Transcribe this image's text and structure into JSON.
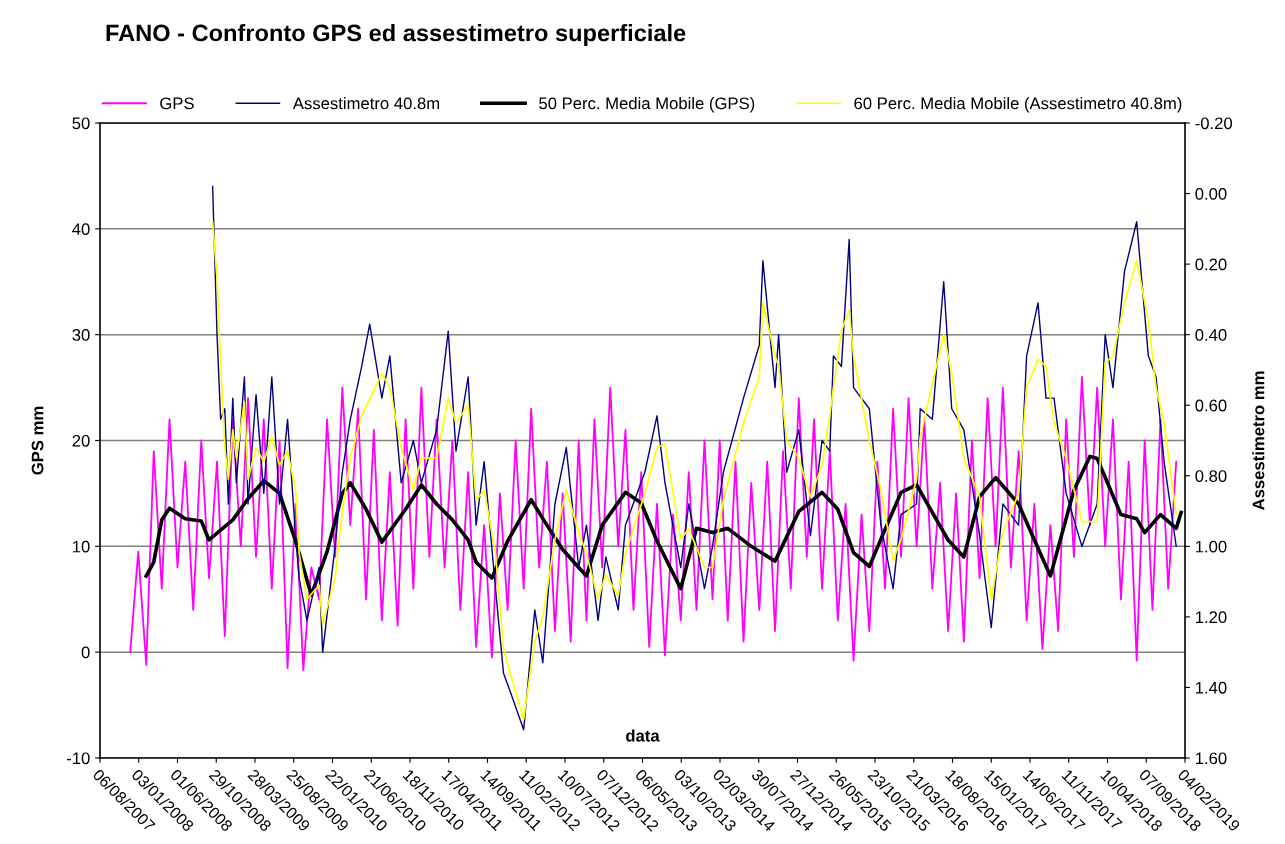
{
  "chart_data": {
    "type": "line",
    "title": "FANO - Confronto GPS ed assestimetro superficiale",
    "xlabel": "data",
    "ylabel": "GPS mm",
    "y2label": "Assestimetro mm",
    "xlim": [
      "2007-08-06",
      "2019-02-04"
    ],
    "xticks": [
      {
        "value": "2007-08-06",
        "label": "06/08/2007"
      },
      {
        "value": "2008-01-03",
        "label": "03/01/2008"
      },
      {
        "value": "2008-06-01",
        "label": "01/06/2008"
      },
      {
        "value": "2008-10-29",
        "label": "29/10/2008"
      },
      {
        "value": "2009-03-28",
        "label": "28/03/2009"
      },
      {
        "value": "2009-08-25",
        "label": "25/08/2009"
      },
      {
        "value": "2010-01-22",
        "label": "22/01/2010"
      },
      {
        "value": "2010-06-21",
        "label": "21/06/2010"
      },
      {
        "value": "2010-11-18",
        "label": "18/11/2010"
      },
      {
        "value": "2011-04-17",
        "label": "17/04/2011"
      },
      {
        "value": "2011-09-14",
        "label": "14/09/2011"
      },
      {
        "value": "2012-02-11",
        "label": "11/02/2012"
      },
      {
        "value": "2012-07-10",
        "label": "10/07/2012"
      },
      {
        "value": "2012-12-07",
        "label": "07/12/2012"
      },
      {
        "value": "2013-05-06",
        "label": "06/05/2013"
      },
      {
        "value": "2013-10-03",
        "label": "03/10/2013"
      },
      {
        "value": "2014-03-02",
        "label": "02/03/2014"
      },
      {
        "value": "2014-07-30",
        "label": "30/07/2014"
      },
      {
        "value": "2014-12-27",
        "label": "27/12/2014"
      },
      {
        "value": "2015-05-26",
        "label": "26/05/2015"
      },
      {
        "value": "2015-10-23",
        "label": "23/10/2015"
      },
      {
        "value": "2016-03-21",
        "label": "21/03/2016"
      },
      {
        "value": "2016-08-18",
        "label": "18/08/2016"
      },
      {
        "value": "2017-01-15",
        "label": "15/01/2017"
      },
      {
        "value": "2017-06-14",
        "label": "14/06/2017"
      },
      {
        "value": "2017-11-11",
        "label": "11/11/2017"
      },
      {
        "value": "2018-04-10",
        "label": "10/04/2018"
      },
      {
        "value": "2018-09-07",
        "label": "07/09/2018"
      },
      {
        "value": "2019-02-04",
        "label": "04/02/2019"
      }
    ],
    "ylim": [
      -10,
      50
    ],
    "yticks": [
      -10,
      0,
      10,
      20,
      30,
      40,
      50
    ],
    "y2lim": [
      1.6,
      -0.2
    ],
    "y2ticks": [
      {
        "value": -0.2,
        "label": "-0.20"
      },
      {
        "value": 0,
        "label": "0.00"
      },
      {
        "value": 0.2,
        "label": "0.20"
      },
      {
        "value": 0.4,
        "label": "0.40"
      },
      {
        "value": 0.6,
        "label": "0.60"
      },
      {
        "value": 0.8,
        "label": "0.80"
      },
      {
        "value": 1.0,
        "label": "1.00"
      },
      {
        "value": 1.2,
        "label": "1.20"
      },
      {
        "value": 1.4,
        "label": "1.40"
      },
      {
        "value": 1.6,
        "label": "1.60"
      }
    ],
    "grid": "y",
    "legend": "top",
    "series": [
      {
        "name": "GPS",
        "color": "#ff00ff",
        "x": [
          "2007-12",
          "2008-01",
          "2008-02",
          "2008-03",
          "2008-04",
          "2008-05",
          "2008-06",
          "2008-07",
          "2008-08",
          "2008-09",
          "2008-10",
          "2008-11",
          "2008-12",
          "2009-01",
          "2009-02",
          "2009-03",
          "2009-04",
          "2009-05",
          "2009-06",
          "2009-07",
          "2009-08",
          "2009-09",
          "2009-10",
          "2009-11",
          "2009-12",
          "2010-01",
          "2010-02",
          "2010-03",
          "2010-04",
          "2010-05",
          "2010-06",
          "2010-07",
          "2010-08",
          "2010-09",
          "2010-10",
          "2010-11",
          "2010-12",
          "2011-01",
          "2011-02",
          "2011-03",
          "2011-04",
          "2011-05",
          "2011-06",
          "2011-07",
          "2011-08",
          "2011-09",
          "2011-10",
          "2011-11",
          "2011-12",
          "2012-01",
          "2012-02",
          "2012-03",
          "2012-04",
          "2012-05",
          "2012-06",
          "2012-07",
          "2012-08",
          "2012-09",
          "2012-10",
          "2012-11",
          "2012-12",
          "2013-01",
          "2013-02",
          "2013-03",
          "2013-04",
          "2013-05",
          "2013-06",
          "2013-07",
          "2013-08",
          "2013-09",
          "2013-10",
          "2013-11",
          "2013-12",
          "2014-01",
          "2014-02",
          "2014-03",
          "2014-04",
          "2014-05",
          "2014-06",
          "2014-07",
          "2014-08",
          "2014-09",
          "2014-10",
          "2014-11",
          "2014-12",
          "2015-01",
          "2015-02",
          "2015-03",
          "2015-04",
          "2015-05",
          "2015-06",
          "2015-07",
          "2015-08",
          "2015-09",
          "2015-10",
          "2015-11",
          "2015-12",
          "2016-01",
          "2016-02",
          "2016-03",
          "2016-04",
          "2016-05",
          "2016-06",
          "2016-07",
          "2016-08",
          "2016-09",
          "2016-10",
          "2016-11",
          "2016-12",
          "2017-01",
          "2017-02",
          "2017-03",
          "2017-04",
          "2017-05",
          "2017-06",
          "2017-07",
          "2017-08",
          "2017-09",
          "2017-10",
          "2017-11",
          "2017-12",
          "2018-01",
          "2018-02",
          "2018-03",
          "2018-04",
          "2018-05",
          "2018-06",
          "2018-07",
          "2018-08",
          "2018-09",
          "2018-10",
          "2018-11",
          "2018-12",
          "2019-01"
        ],
        "values": [
          0,
          9.5,
          -1.2,
          19,
          6,
          22,
          8,
          18,
          4,
          20,
          7,
          18,
          1.5,
          22,
          10,
          24,
          9,
          22,
          6,
          20,
          -1.5,
          14,
          -1.7,
          8,
          5,
          22,
          9,
          25,
          12,
          23,
          5,
          21,
          3,
          17,
          2.5,
          22,
          6,
          25,
          9,
          22,
          8,
          20,
          4,
          17,
          0.5,
          12,
          -0.5,
          15,
          4,
          20,
          6,
          23,
          8,
          18,
          2,
          15,
          1,
          20,
          3,
          22,
          8,
          25,
          10,
          21,
          4,
          17,
          0.5,
          14,
          -0.3,
          13,
          3,
          17,
          4,
          20,
          5,
          20,
          3,
          18,
          1,
          16,
          4,
          18,
          2,
          19,
          6,
          24,
          9,
          22,
          6,
          19,
          3,
          14,
          -0.8,
          13,
          2,
          18,
          6,
          23,
          9,
          24,
          10,
          22,
          6,
          16,
          2,
          15,
          1,
          20,
          7,
          24,
          10,
          25,
          8,
          19,
          3,
          14,
          0.3,
          12,
          2,
          22,
          9,
          26,
          12,
          25,
          10,
          22,
          5,
          18,
          -0.8,
          20,
          4,
          22,
          6,
          18
        ]
      },
      {
        "name": "Assestimetro 40.8m",
        "color": "#000080",
        "axis": "y2",
        "x": [
          "2008-10-15",
          "2008-11",
          "2008-11-15",
          "2008-12",
          "2008-12-15",
          "2009-01",
          "2009-01-15",
          "2009-02-15",
          "2009-03",
          "2009-04",
          "2009-05",
          "2009-06",
          "2009-07",
          "2009-08",
          "2009-09",
          "2009-09-15",
          "2009-10-15",
          "2009-12",
          "2009-12-15",
          "2010-02",
          "2010-03",
          "2010-04",
          "2010-05-15",
          "2010-06-15",
          "2010-08",
          "2010-09",
          "2010-10-15",
          "2010-12",
          "2011-01",
          "2011-03",
          "2011-04-15",
          "2011-05-15",
          "2011-07",
          "2011-08",
          "2011-09",
          "2011-10-15",
          "2011-11-15",
          "2011-12-15",
          "2012-02",
          "2012-03-15",
          "2012-04-15",
          "2012-06",
          "2012-07-15",
          "2012-09",
          "2012-10",
          "2012-11-15",
          "2012-12-15",
          "2013-02",
          "2013-03",
          "2013-05-15",
          "2013-07",
          "2013-08",
          "2013-10",
          "2013-11",
          "2014-01",
          "2014-02",
          "2014-03-15",
          "2014-06",
          "2014-08",
          "2014-08-15",
          "2014-10",
          "2014-10-15",
          "2014-11-15",
          "2015-01",
          "2015-02-15",
          "2015-04",
          "2015-05",
          "2015-05-15",
          "2015-06-15",
          "2015-07-15",
          "2015-08",
          "2015-10",
          "2015-11-15",
          "2016-01",
          "2016-02",
          "2016-04",
          "2016-04-15",
          "2016-06",
          "2016-07-15",
          "2016-08-15",
          "2016-10",
          "2016-12",
          "2017-01-15",
          "2017-03",
          "2017-05",
          "2017-06",
          "2017-07-15",
          "2017-08-15",
          "2017-09-15",
          "2017-11",
          "2018-01",
          "2018-03",
          "2018-04",
          "2018-05",
          "2018-06-15",
          "2018-08",
          "2018-09-15",
          "2018-10-15",
          "2018-11-15",
          "2019-01"
        ],
        "values": [
          -0.02,
          0.4,
          0.64,
          0.61,
          0.88,
          0.58,
          0.82,
          0.52,
          0.88,
          0.57,
          0.85,
          0.52,
          0.88,
          0.64,
          0.97,
          1.09,
          1.21,
          1.06,
          1.3,
          1.0,
          0.79,
          0.64,
          0.49,
          0.37,
          0.58,
          0.46,
          0.82,
          0.7,
          0.82,
          0.67,
          0.39,
          0.73,
          0.52,
          0.94,
          0.76,
          1.12,
          1.36,
          1.42,
          1.52,
          1.18,
          1.33,
          0.88,
          0.72,
          1.06,
          0.94,
          1.21,
          1.03,
          1.18,
          0.94,
          0.79,
          0.63,
          0.82,
          1.06,
          0.88,
          1.12,
          1.0,
          0.79,
          0.58,
          0.43,
          0.19,
          0.55,
          0.4,
          0.79,
          0.67,
          0.97,
          0.7,
          0.73,
          0.46,
          0.49,
          0.13,
          0.55,
          0.61,
          0.94,
          1.12,
          0.91,
          0.88,
          0.61,
          0.64,
          0.25,
          0.61,
          0.67,
          0.97,
          1.23,
          0.88,
          0.94,
          0.46,
          0.31,
          0.58,
          0.58,
          0.85,
          1.0,
          0.88,
          0.4,
          0.55,
          0.22,
          0.08,
          0.46,
          0.52,
          0.76,
          1.0
        ]
      },
      {
        "name": "50 Perc. Media Mobile (GPS)",
        "color": "#000000",
        "x": [
          "2008-02",
          "2008-03",
          "2008-04",
          "2008-05",
          "2008-07",
          "2008-09",
          "2008-10",
          "2009-01",
          "2009-03",
          "2009-05",
          "2009-07",
          "2009-09",
          "2009-11",
          "2010-01",
          "2010-03",
          "2010-04",
          "2010-06",
          "2010-08",
          "2010-11",
          "2011-01",
          "2011-03",
          "2011-05",
          "2011-07",
          "2011-08",
          "2011-10",
          "2011-12",
          "2012-03",
          "2012-05",
          "2012-07",
          "2012-09",
          "2012-10",
          "2012-12",
          "2013-03",
          "2013-05",
          "2013-07",
          "2013-10",
          "2013-12",
          "2014-02",
          "2014-04",
          "2014-07",
          "2014-10",
          "2015-01",
          "2015-04",
          "2015-06",
          "2015-08",
          "2015-10",
          "2015-12",
          "2016-02",
          "2016-04",
          "2016-08",
          "2016-10",
          "2016-12",
          "2017-02",
          "2017-05",
          "2017-07",
          "2017-09",
          "2017-12",
          "2018-02",
          "2018-03",
          "2018-06",
          "2018-08",
          "2018-09",
          "2018-11",
          "2019-01",
          "2019-01-20"
        ],
        "values": [
          7.2,
          8.5,
          12.5,
          13.6,
          12.6,
          12.4,
          10.6,
          12.5,
          14.5,
          16.2,
          15.0,
          10.5,
          5.4,
          9.5,
          15.0,
          16.0,
          13.5,
          10.4,
          13.5,
          15.8,
          14.0,
          12.5,
          10.6,
          8.5,
          7.0,
          10.5,
          14.4,
          12.0,
          9.7,
          8.0,
          7.2,
          12.0,
          15.1,
          14.1,
          10.5,
          6.0,
          11.7,
          11.3,
          11.7,
          10.0,
          8.6,
          13.3,
          15.1,
          13.5,
          9.4,
          8.1,
          11.6,
          15.1,
          15.8,
          10.6,
          9.0,
          14.7,
          16.5,
          14.0,
          10.6,
          7.2,
          15.3,
          18.5,
          18.3,
          13.0,
          12.6,
          11.3,
          13.0,
          11.7,
          13.2
        ]
      },
      {
        "name": "60 Perc. Media Mobile (Assestimetro 40.8m)",
        "color": "#ffff00",
        "axis": "y2",
        "x": [
          "2008-10-15",
          "2008-11",
          "2008-11-15",
          "2008-12",
          "2008-12-15",
          "2009-01",
          "2009-01-15",
          "2009-02-15",
          "2009-03",
          "2009-04",
          "2009-05",
          "2009-06",
          "2009-07",
          "2009-08",
          "2009-09",
          "2009-09-15",
          "2009-10-15",
          "2009-12",
          "2009-12-15",
          "2010-02",
          "2010-03",
          "2010-04",
          "2010-05-15",
          "2010-08",
          "2010-09",
          "2010-10-15",
          "2010-12",
          "2011-01",
          "2011-03",
          "2011-04-15",
          "2011-05-15",
          "2011-07",
          "2011-08",
          "2011-09",
          "2011-10-15",
          "2011-11-15",
          "2011-12-15",
          "2012-02",
          "2012-03-15",
          "2012-04-15",
          "2012-06",
          "2012-07-15",
          "2012-09",
          "2012-10",
          "2012-11-15",
          "2012-12-15",
          "2013-02",
          "2013-03",
          "2013-05-15",
          "2013-07",
          "2013-08",
          "2013-10",
          "2013-11",
          "2014-01",
          "2014-02",
          "2014-03-15",
          "2014-06",
          "2014-08",
          "2014-08-15",
          "2014-10",
          "2014-10-15",
          "2014-11-15",
          "2015-01",
          "2015-02-15",
          "2015-04",
          "2015-05",
          "2015-05-15",
          "2015-06-15",
          "2015-07-15",
          "2015-08",
          "2015-10",
          "2015-11-15",
          "2016-01",
          "2016-02",
          "2016-04",
          "2016-04-15",
          "2016-06",
          "2016-07-15",
          "2016-08-15",
          "2016-10",
          "2016-12",
          "2017-01-15",
          "2017-03",
          "2017-05",
          "2017-06",
          "2017-07-15",
          "2017-08-15",
          "2017-09-15",
          "2017-11",
          "2018-01",
          "2018-03",
          "2018-04",
          "2018-05",
          "2018-06-15",
          "2018-08",
          "2018-09-15",
          "2018-10-15",
          "2018-11-15",
          "2019-01"
        ],
        "values": [
          0.08,
          0.24,
          0.48,
          0.72,
          0.81,
          0.67,
          0.75,
          0.59,
          0.81,
          0.72,
          0.76,
          0.69,
          0.77,
          0.73,
          0.84,
          1.02,
          1.15,
          1.11,
          1.22,
          1.09,
          0.9,
          0.75,
          0.63,
          0.51,
          0.55,
          0.72,
          0.84,
          0.75,
          0.75,
          0.58,
          0.65,
          0.6,
          0.87,
          0.84,
          1.02,
          1.29,
          1.37,
          1.49,
          1.27,
          1.2,
          0.98,
          0.84,
          0.96,
          1.02,
          1.15,
          1.08,
          1.14,
          1.02,
          0.85,
          0.72,
          0.71,
          0.98,
          0.95,
          1.06,
          1.06,
          0.87,
          0.65,
          0.52,
          0.31,
          0.46,
          0.49,
          0.7,
          0.75,
          0.86,
          0.77,
          0.63,
          0.55,
          0.39,
          0.33,
          0.46,
          0.7,
          0.84,
          1.04,
          0.98,
          0.81,
          0.69,
          0.54,
          0.4,
          0.51,
          0.75,
          0.86,
          1.15,
          0.96,
          0.85,
          0.55,
          0.47,
          0.49,
          0.65,
          0.75,
          0.93,
          0.93,
          0.48,
          0.46,
          0.31,
          0.19,
          0.36,
          0.55,
          0.65,
          0.91
        ]
      }
    ]
  }
}
